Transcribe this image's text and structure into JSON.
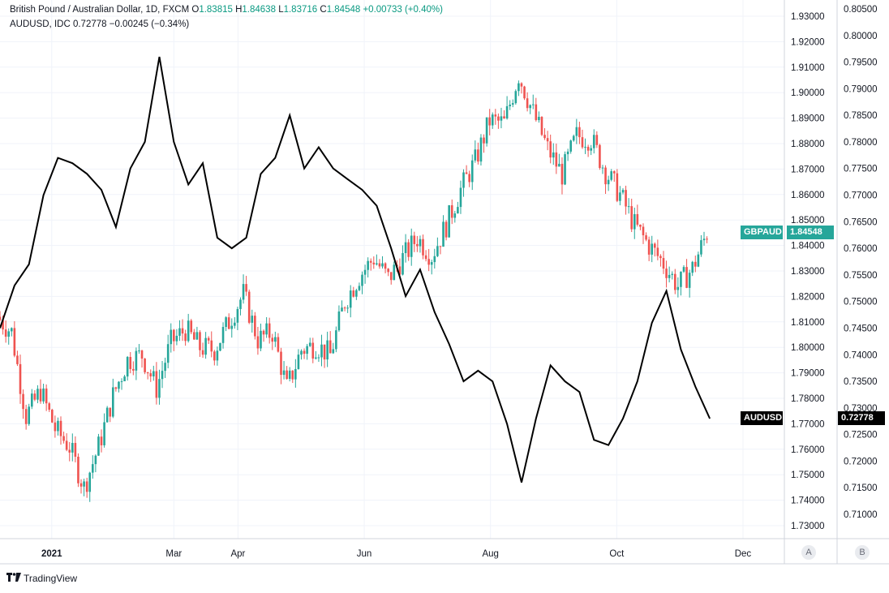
{
  "legend": {
    "main": {
      "title": "British Pound / Australian Dollar, 1D, FXCM",
      "o_label": "O",
      "o": "1.83815",
      "h_label": "H",
      "h": "1.84638",
      "l_label": "L",
      "l": "1.83716",
      "c_label": "C",
      "c": "1.84548",
      "change": "+0.00733 (+0.40%)"
    },
    "secondary": {
      "title": "AUDUSD, IDC",
      "value": "0.72778",
      "change": "−0.00245 (−0.34%)"
    }
  },
  "scale_buttons": {
    "a": "A",
    "b": "B"
  },
  "branding": {
    "name": "TradingView"
  },
  "colors": {
    "up": "#26a69a",
    "down": "#ef5350",
    "line": "#000000",
    "grid": "#f0f3fa",
    "axis_text": "#131722",
    "gbpaud_tag": "#26a69a",
    "audusd_tag": "#000000"
  },
  "chart_data": {
    "type": "line",
    "xlabel": "",
    "ylabel": "",
    "grid": true,
    "x_axis": {
      "ticks": [
        "2021",
        "Mar",
        "Apr",
        "Jun",
        "Aug",
        "Oct",
        "Dec"
      ],
      "tick_dates": [
        "2021-01-01",
        "2021-03-01",
        "2021-04-01",
        "2021-06-01",
        "2021-08-01",
        "2021-10-01",
        "2021-12-01"
      ],
      "range": [
        "2020-12-07",
        "2021-12-21"
      ]
    },
    "y_axis_left": {
      "series": "GBPAUD",
      "range": [
        1.7255,
        1.9355
      ],
      "ticks": [
        "1.73000",
        "1.74000",
        "1.75000",
        "1.76000",
        "1.77000",
        "1.78000",
        "1.79000",
        "1.80000",
        "1.81000",
        "1.82000",
        "1.83000",
        "1.84000",
        "1.85000",
        "1.86000",
        "1.87000",
        "1.88000",
        "1.89000",
        "1.90000",
        "1.91000",
        "1.92000",
        "1.93000"
      ]
    },
    "y_axis_right": {
      "series": "AUDUSD",
      "range": [
        0.7027,
        0.8053
      ],
      "ticks": [
        "0.71000",
        "0.71500",
        "0.72000",
        "0.72500",
        "0.73000",
        "0.73500",
        "0.74000",
        "0.74500",
        "0.75000",
        "0.75500",
        "0.76000",
        "0.76500",
        "0.77000",
        "0.77500",
        "0.78000",
        "0.78500",
        "0.79000",
        "0.79500",
        "0.80000",
        "0.80500"
      ]
    },
    "price_tags": [
      {
        "series": "GBPAUD",
        "label": "GBPAUD",
        "value": "1.84548"
      },
      {
        "series": "AUDUSD",
        "label": "AUDUSD",
        "value": "0.72778"
      }
    ],
    "series": [
      {
        "name": "GBPAUD",
        "kind": "candlestick",
        "points": [
          [
            "2020-12-07",
            1.812
          ],
          [
            "2020-12-14",
            1.806
          ],
          [
            "2020-12-21",
            1.773
          ],
          [
            "2020-12-28",
            1.783
          ],
          [
            "2021-01-04",
            1.768
          ],
          [
            "2021-01-11",
            1.761
          ],
          [
            "2021-01-18",
            1.745
          ],
          [
            "2021-01-25",
            1.761
          ],
          [
            "2021-02-01",
            1.781
          ],
          [
            "2021-02-08",
            1.795
          ],
          [
            "2021-02-15",
            1.797
          ],
          [
            "2021-02-22",
            1.784
          ],
          [
            "2021-03-01",
            1.802
          ],
          [
            "2021-03-08",
            1.807
          ],
          [
            "2021-03-15",
            1.8
          ],
          [
            "2021-03-22",
            1.799
          ],
          [
            "2021-03-29",
            1.81
          ],
          [
            "2021-04-05",
            1.821
          ],
          [
            "2021-04-12",
            1.803
          ],
          [
            "2021-04-19",
            1.806
          ],
          [
            "2021-04-26",
            1.784
          ],
          [
            "2021-05-03",
            1.799
          ],
          [
            "2021-05-10",
            1.801
          ],
          [
            "2021-05-17",
            1.797
          ],
          [
            "2021-05-24",
            1.818
          ],
          [
            "2021-05-31",
            1.828
          ],
          [
            "2021-06-07",
            1.835
          ],
          [
            "2021-06-14",
            1.827
          ],
          [
            "2021-06-21",
            1.835
          ],
          [
            "2021-06-28",
            1.843
          ],
          [
            "2021-07-05",
            1.836
          ],
          [
            "2021-07-12",
            1.848
          ],
          [
            "2021-07-19",
            1.862
          ],
          [
            "2021-07-26",
            1.873
          ],
          [
            "2021-08-02",
            1.889
          ],
          [
            "2021-08-09",
            1.888
          ],
          [
            "2021-08-16",
            1.907
          ],
          [
            "2021-08-23",
            1.892
          ],
          [
            "2021-08-30",
            1.878
          ],
          [
            "2021-09-06",
            1.868
          ],
          [
            "2021-09-13",
            1.883
          ],
          [
            "2021-09-20",
            1.882
          ],
          [
            "2021-09-27",
            1.869
          ],
          [
            "2021-10-04",
            1.86
          ],
          [
            "2021-10-11",
            1.848
          ],
          [
            "2021-10-18",
            1.84
          ],
          [
            "2021-10-25",
            1.833
          ],
          [
            "2021-11-01",
            1.824
          ],
          [
            "2021-11-08",
            1.831
          ],
          [
            "2021-11-15",
            1.845
          ]
        ]
      },
      {
        "name": "AUDUSD",
        "kind": "line",
        "points": [
          [
            "2020-12-07",
            0.745
          ],
          [
            "2020-12-14",
            0.753
          ],
          [
            "2020-12-21",
            0.757
          ],
          [
            "2020-12-28",
            0.77
          ],
          [
            "2021-01-04",
            0.777
          ],
          [
            "2021-01-11",
            0.776
          ],
          [
            "2021-01-18",
            0.774
          ],
          [
            "2021-01-25",
            0.771
          ],
          [
            "2021-02-01",
            0.764
          ],
          [
            "2021-02-08",
            0.775
          ],
          [
            "2021-02-15",
            0.78
          ],
          [
            "2021-02-22",
            0.796
          ],
          [
            "2021-03-01",
            0.78
          ],
          [
            "2021-03-08",
            0.772
          ],
          [
            "2021-03-15",
            0.776
          ],
          [
            "2021-03-22",
            0.762
          ],
          [
            "2021-03-29",
            0.76
          ],
          [
            "2021-04-05",
            0.762
          ],
          [
            "2021-04-12",
            0.774
          ],
          [
            "2021-04-19",
            0.777
          ],
          [
            "2021-04-26",
            0.785
          ],
          [
            "2021-05-03",
            0.775
          ],
          [
            "2021-05-10",
            0.779
          ],
          [
            "2021-05-17",
            0.775
          ],
          [
            "2021-05-24",
            0.773
          ],
          [
            "2021-05-31",
            0.771
          ],
          [
            "2021-06-07",
            0.768
          ],
          [
            "2021-06-14",
            0.76
          ],
          [
            "2021-06-21",
            0.751
          ],
          [
            "2021-06-28",
            0.756
          ],
          [
            "2021-07-05",
            0.748
          ],
          [
            "2021-07-12",
            0.742
          ],
          [
            "2021-07-19",
            0.735
          ],
          [
            "2021-07-26",
            0.737
          ],
          [
            "2021-08-02",
            0.735
          ],
          [
            "2021-08-09",
            0.727
          ],
          [
            "2021-08-16",
            0.716
          ],
          [
            "2021-08-23",
            0.728
          ],
          [
            "2021-08-30",
            0.738
          ],
          [
            "2021-09-06",
            0.735
          ],
          [
            "2021-09-13",
            0.733
          ],
          [
            "2021-09-20",
            0.724
          ],
          [
            "2021-09-27",
            0.723
          ],
          [
            "2021-10-04",
            0.728
          ],
          [
            "2021-10-11",
            0.735
          ],
          [
            "2021-10-18",
            0.746
          ],
          [
            "2021-10-25",
            0.752
          ],
          [
            "2021-11-01",
            0.741
          ],
          [
            "2021-11-08",
            0.734
          ],
          [
            "2021-11-15",
            0.728
          ]
        ]
      }
    ]
  }
}
